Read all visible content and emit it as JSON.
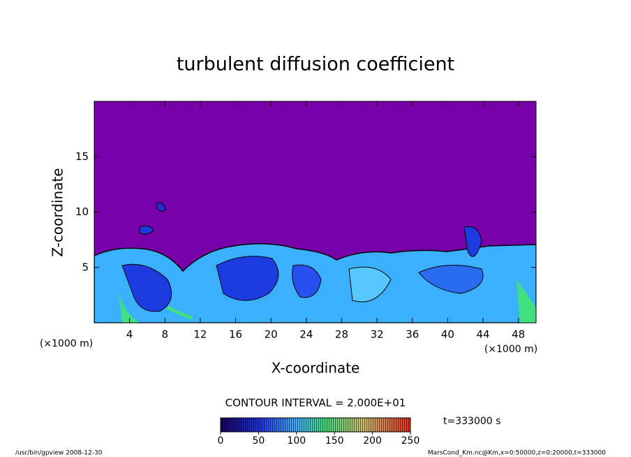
{
  "chart_data": {
    "type": "contour",
    "title": "turbulent diffusion coefficient",
    "x_label": "X-coordinate",
    "y_label": "Z-coordinate",
    "x_unit": "(×1000 m)",
    "xlim": [
      0,
      50
    ],
    "xticks": [
      4,
      8,
      12,
      16,
      20,
      24,
      28,
      32,
      36,
      40,
      44,
      48
    ],
    "ylim": [
      0,
      20
    ],
    "yticks": [
      5,
      10,
      15
    ],
    "contour_interval": "CONTOUR INTERVAL = 2.000E+01",
    "time_label": "t=333000 s",
    "colorbar_lim": [
      0,
      250
    ],
    "colorbar_ticks": [
      0,
      50,
      100,
      150,
      200,
      250
    ],
    "footer_left": "/usr/bin/gpview   2008-12-30",
    "footer_right": "MarsCond_Km.nc@Km,x=0:50000,z=0:20000,t=333000"
  }
}
